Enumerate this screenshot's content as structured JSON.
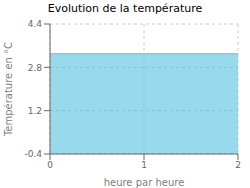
{
  "chart_data": {
    "type": "area",
    "title": "Evolution de la température",
    "xlabel": "heure par heure",
    "ylabel": "Température en °C",
    "x": [
      0,
      1,
      2
    ],
    "values": [
      3.3,
      3.3,
      3.3
    ],
    "color": "#55c0e0",
    "xlim": [
      0,
      2
    ],
    "ylim": [
      -0.4,
      4.4
    ],
    "xticks": [
      0,
      1,
      2
    ],
    "yticks": [
      -0.4,
      1.2,
      2.8,
      4.4
    ],
    "grid": true
  }
}
